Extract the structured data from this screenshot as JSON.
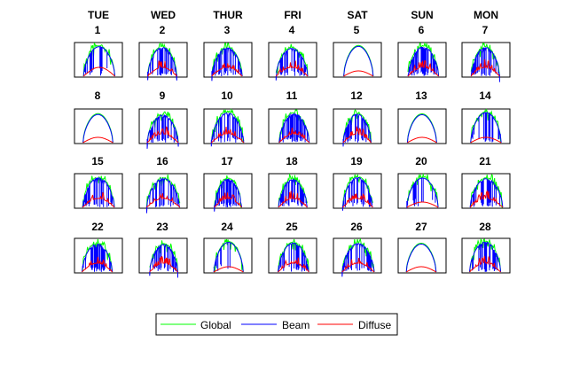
{
  "chart_data": {
    "type": "line",
    "layout": "small-multiples",
    "grid": false,
    "axes_ticks": false,
    "day_names": [
      "TUE",
      "WED",
      "THUR",
      "FRI",
      "SAT",
      "SUN",
      "MON"
    ],
    "days": [
      {
        "day": "1",
        "condition": "clear-am"
      },
      {
        "day": "2",
        "condition": "variable"
      },
      {
        "day": "3",
        "condition": "variable"
      },
      {
        "day": "4",
        "condition": "variable"
      },
      {
        "day": "5",
        "condition": "clear"
      },
      {
        "day": "6",
        "condition": "variable"
      },
      {
        "day": "7",
        "condition": "variable"
      },
      {
        "day": "8",
        "condition": "clear"
      },
      {
        "day": "9",
        "condition": "variable"
      },
      {
        "day": "10",
        "condition": "variable"
      },
      {
        "day": "11",
        "condition": "variable"
      },
      {
        "day": "12",
        "condition": "variable"
      },
      {
        "day": "13",
        "condition": "clear"
      },
      {
        "day": "14",
        "condition": "mostly-clear"
      },
      {
        "day": "15",
        "condition": "variable"
      },
      {
        "day": "16",
        "condition": "variable"
      },
      {
        "day": "17",
        "condition": "variable"
      },
      {
        "day": "18",
        "condition": "variable"
      },
      {
        "day": "19",
        "condition": "variable"
      },
      {
        "day": "20",
        "condition": "mostly-clear"
      },
      {
        "day": "21",
        "condition": "variable"
      },
      {
        "day": "22",
        "condition": "variable"
      },
      {
        "day": "23",
        "condition": "variable"
      },
      {
        "day": "24",
        "condition": "mostly-clear"
      },
      {
        "day": "25",
        "condition": "variable"
      },
      {
        "day": "26",
        "condition": "variable"
      },
      {
        "day": "27",
        "condition": "clear"
      },
      {
        "day": "28",
        "condition": "variable"
      }
    ],
    "series": [
      {
        "name": "Global",
        "color": "#00ff00"
      },
      {
        "name": "Beam",
        "color": "#0000ff"
      },
      {
        "name": "Diffuse",
        "color": "#ff0000"
      }
    ],
    "legend_position": "bottom-center"
  }
}
